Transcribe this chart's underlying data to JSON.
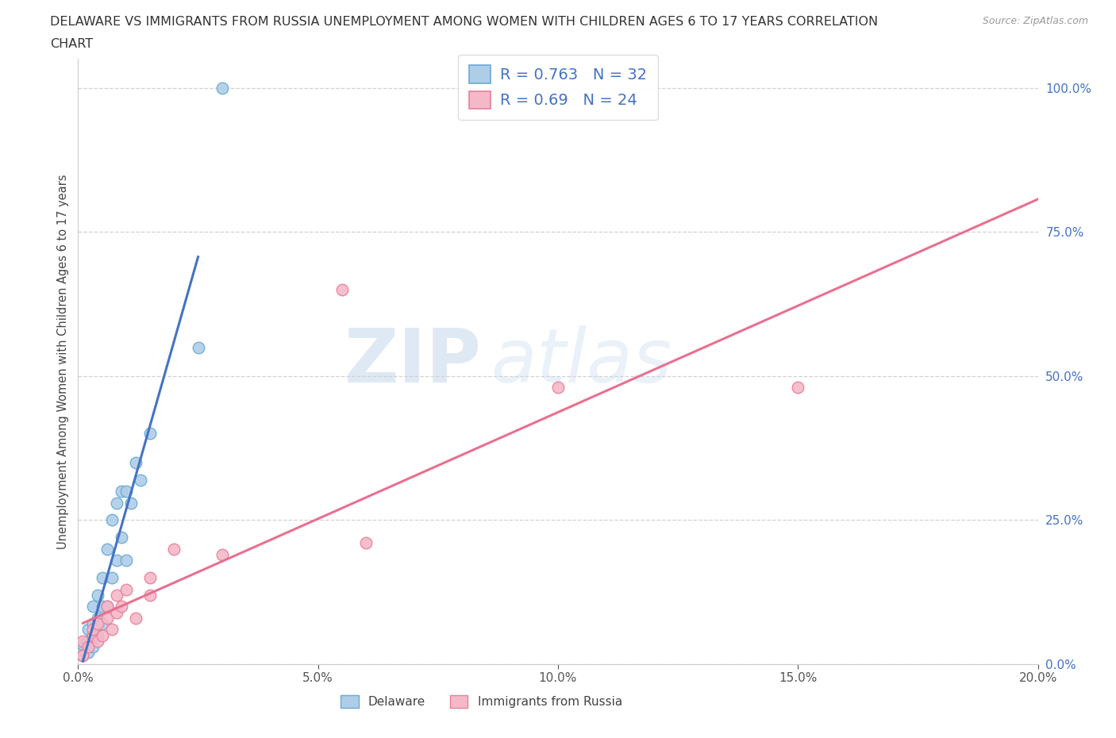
{
  "title_line1": "DELAWARE VS IMMIGRANTS FROM RUSSIA UNEMPLOYMENT AMONG WOMEN WITH CHILDREN AGES 6 TO 17 YEARS CORRELATION",
  "title_line2": "CHART",
  "source_text": "Source: ZipAtlas.com",
  "watermark_zip": "ZIP",
  "watermark_atlas": "atlas",
  "ylabel": "Unemployment Among Women with Children Ages 6 to 17 years",
  "xlim": [
    0.0,
    0.2
  ],
  "ylim": [
    0.0,
    1.05
  ],
  "xticks": [
    0.0,
    0.05,
    0.1,
    0.15,
    0.2
  ],
  "xtick_labels": [
    "0.0%",
    "5.0%",
    "10.0%",
    "15.0%",
    "20.0%"
  ],
  "yticks": [
    0.0,
    0.25,
    0.5,
    0.75,
    1.0
  ],
  "ytick_labels": [
    "0.0%",
    "25.0%",
    "50.0%",
    "75.0%",
    "100.0%"
  ],
  "delaware_color": "#aecde8",
  "russia_color": "#f5b8c8",
  "delaware_edge": "#6aaad4",
  "russia_edge": "#e8809a",
  "trend_delaware_color": "#4472c4",
  "trend_russia_color": "#e87090",
  "delaware_R": 0.763,
  "delaware_N": 32,
  "russia_R": 0.69,
  "russia_N": 24,
  "legend_label_delaware": "Delaware",
  "legend_label_russia": "Immigrants from Russia",
  "background_color": "#ffffff",
  "grid_color": "#cccccc",
  "delaware_scatter_x": [
    0.001,
    0.001,
    0.001,
    0.002,
    0.002,
    0.002,
    0.003,
    0.003,
    0.003,
    0.003,
    0.004,
    0.004,
    0.004,
    0.005,
    0.005,
    0.005,
    0.006,
    0.006,
    0.007,
    0.007,
    0.008,
    0.008,
    0.009,
    0.009,
    0.01,
    0.01,
    0.011,
    0.012,
    0.013,
    0.015,
    0.025,
    0.03
  ],
  "delaware_scatter_y": [
    0.015,
    0.025,
    0.035,
    0.02,
    0.04,
    0.06,
    0.03,
    0.05,
    0.07,
    0.1,
    0.05,
    0.08,
    0.12,
    0.07,
    0.1,
    0.15,
    0.1,
    0.2,
    0.15,
    0.25,
    0.18,
    0.28,
    0.22,
    0.3,
    0.18,
    0.3,
    0.28,
    0.35,
    0.32,
    0.4,
    0.55,
    1.0
  ],
  "russia_scatter_x": [
    0.001,
    0.001,
    0.002,
    0.003,
    0.003,
    0.004,
    0.004,
    0.005,
    0.006,
    0.006,
    0.007,
    0.008,
    0.008,
    0.009,
    0.01,
    0.012,
    0.015,
    0.015,
    0.02,
    0.03,
    0.055,
    0.06,
    0.1,
    0.15
  ],
  "russia_scatter_y": [
    0.015,
    0.04,
    0.03,
    0.05,
    0.06,
    0.04,
    0.07,
    0.05,
    0.08,
    0.1,
    0.06,
    0.09,
    0.12,
    0.1,
    0.13,
    0.08,
    0.12,
    0.15,
    0.2,
    0.19,
    0.65,
    0.21,
    0.48,
    0.48
  ]
}
